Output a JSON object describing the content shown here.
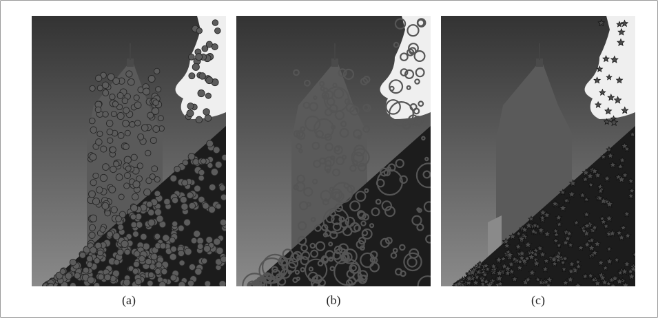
{
  "figure": {
    "panels": [
      {
        "id": "a",
        "caption": "(a)",
        "marker": "filled-circle-markers"
      },
      {
        "id": "b",
        "caption": "(b)",
        "marker": "open-circle-markers"
      },
      {
        "id": "c",
        "caption": "(c)",
        "marker": "star-markers"
      }
    ]
  },
  "colors": {
    "sky_top": "#3d3d3d",
    "sky_bottom": "#8c8c8c",
    "tower": "#5e5e5e",
    "foreground_building": "#1c1c1c",
    "cloud": "#f2f2f2",
    "marker_fill": "#5c5c5c",
    "marker_stroke": "#2a2a2a"
  }
}
